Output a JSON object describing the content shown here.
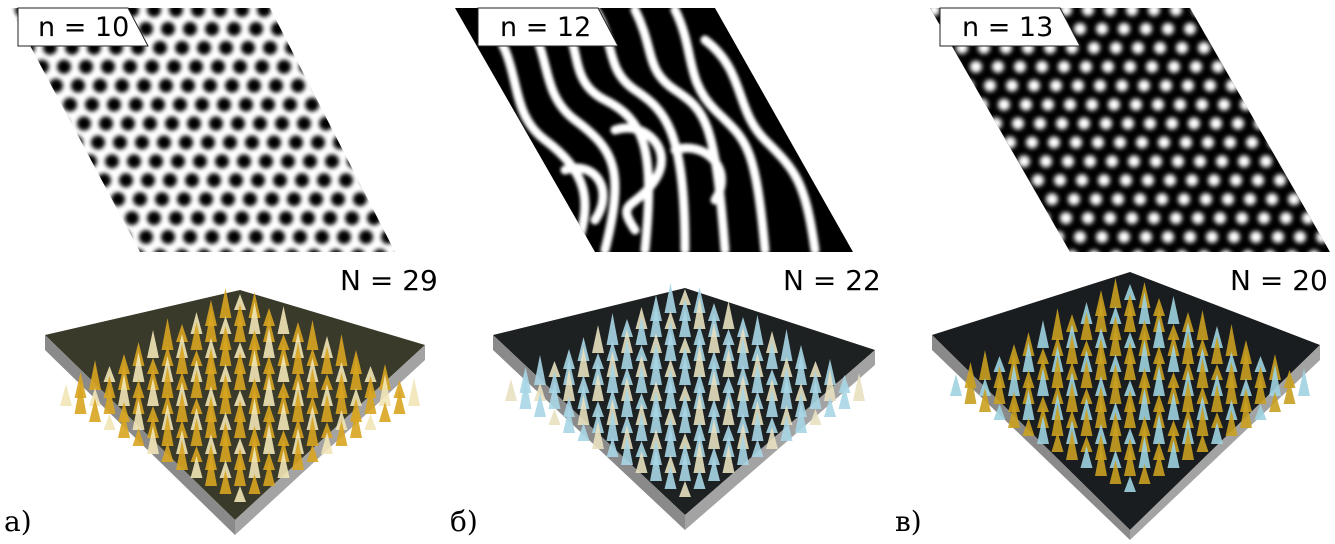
{
  "panels": [
    {
      "n_label": "n = 10",
      "N_label": "N = 29",
      "panel_label": "а)",
      "pattern": "dark-spots",
      "peak_color": "#d9a520"
    },
    {
      "n_label": "n = 12",
      "N_label": "N = 22",
      "panel_label": "б)",
      "pattern": "stripes",
      "peak_color": "#a9d6e6"
    },
    {
      "n_label": "n = 13",
      "N_label": "N = 20",
      "panel_label": "в)",
      "pattern": "bright-spots",
      "peak_color": "#c9a020"
    }
  ]
}
